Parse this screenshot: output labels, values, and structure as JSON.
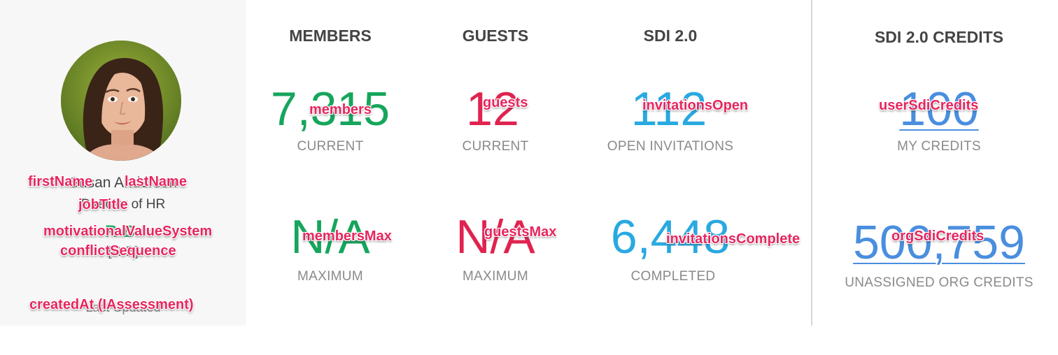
{
  "profile": {
    "name_underlay": "Susan Anderson",
    "title_underlay": "Director of HR",
    "mvs_underlay": "R-B",
    "cs_underlay": "[R-B]",
    "date_underlay": "Last Updated",
    "tags": {
      "first_name": "firstName",
      "last_name": "lastName",
      "job_title": "jobTitle",
      "mvs": "motivationalValueSystem",
      "conflict": "conflictSequence",
      "created_at": "createdAt (IAssessment)"
    }
  },
  "colors": {
    "green": "#16a55c",
    "red": "#e0234f",
    "cyan": "#29a9e0",
    "blue": "#4a8ede",
    "tag": "#e6255f"
  },
  "columns": {
    "members": {
      "header": "MEMBERS",
      "current_value": "7,315",
      "current_label": "CURRENT",
      "current_tag": "members",
      "max_value": "N/A",
      "max_label": "MAXIMUM",
      "max_tag": "membersMax"
    },
    "guests": {
      "header": "GUESTS",
      "current_value": "12",
      "current_label": "CURRENT",
      "current_tag": "guests",
      "max_value": "N/A",
      "max_label": "MAXIMUM",
      "max_tag": "guestsMax"
    },
    "sdi": {
      "header": "SDI 2.0",
      "open_value": "112",
      "open_label": "OPEN INVITATIONS",
      "open_tag": "invitationsOpen",
      "completed_value": "6,448",
      "completed_label": "COMPLETED",
      "completed_tag": "invitationsComplete"
    },
    "credits": {
      "header": "SDI 2.0 CREDITS",
      "my_value": "100",
      "my_label": "MY CREDITS",
      "my_tag": "userSdiCredits",
      "org_value": "500,759",
      "org_label": "UNASSIGNED ORG CREDITS",
      "org_tag": "orgSdiCredits"
    }
  }
}
